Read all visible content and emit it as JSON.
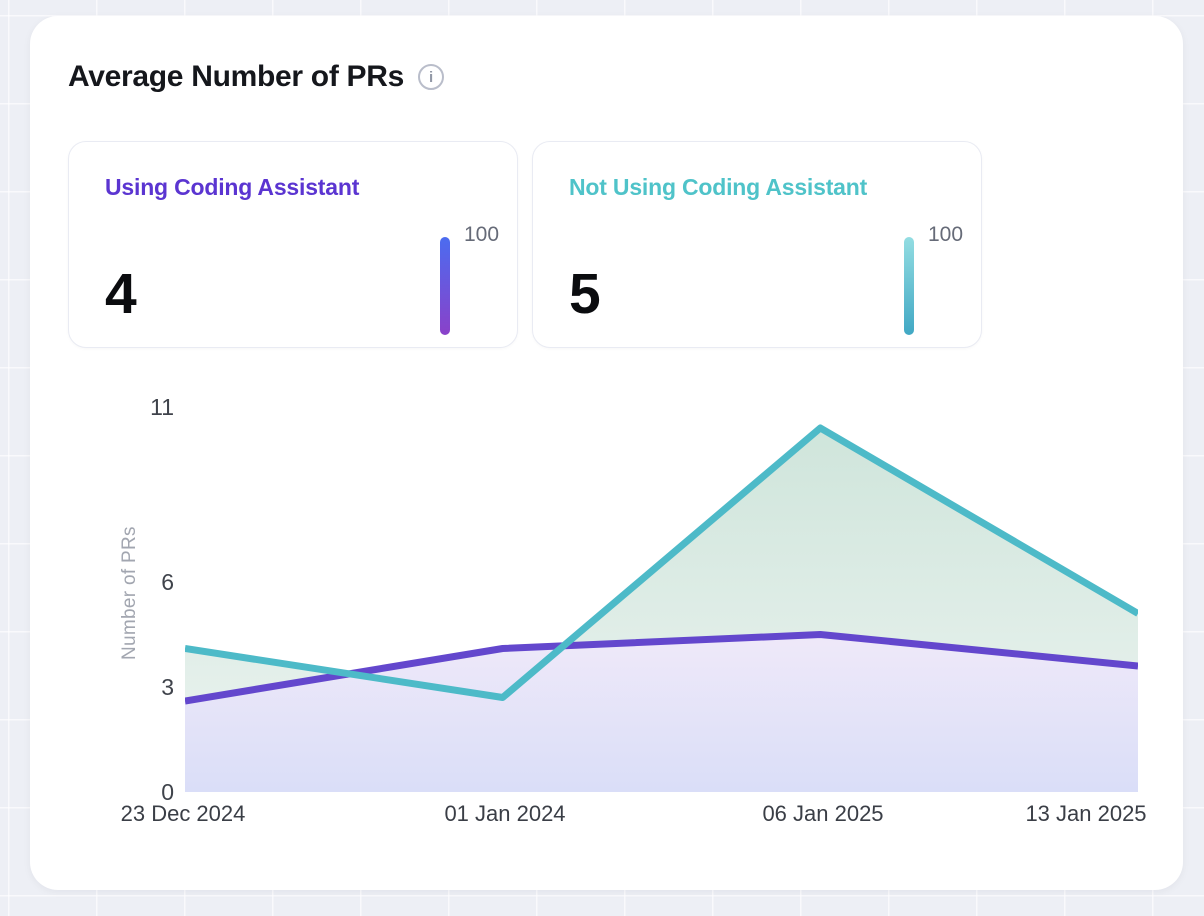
{
  "header": {
    "title": "Average Number of PRs",
    "info_glyph": "i"
  },
  "stat_cards": [
    {
      "label": "Using Coding Assistant",
      "value": "4",
      "scale_label": "100",
      "accent": "#5b35d1",
      "bar_from": "#4b6cf0",
      "bar_to": "#8a41c9"
    },
    {
      "label": "Not Using Coding Assistant",
      "value": "5",
      "scale_label": "100",
      "accent": "#4fc3c9",
      "bar_from": "#93dde2",
      "bar_to": "#41a8c4"
    }
  ],
  "chart_data": {
    "type": "area",
    "title": "Average Number of PRs",
    "x": [
      "23 Dec 2024",
      "01 Jan 2024",
      "06 Jan 2025",
      "13 Jan 2025"
    ],
    "series": [
      {
        "name": "Using Coding Assistant",
        "color": "#6347cd",
        "area_from": "#efe9f9",
        "area_to": "#dadef8",
        "values": [
          2.6,
          4.1,
          4.5,
          3.6
        ]
      },
      {
        "name": "Not Using Coding Assistant",
        "color": "#4dbac8",
        "area_from": "#cfe5db",
        "area_to": "#edf4f1",
        "values": [
          4.1,
          2.7,
          10.4,
          5.1
        ]
      }
    ],
    "ylabel": "Number of PRs",
    "yticks": [
      0,
      3,
      6,
      11
    ],
    "ylim": [
      0,
      11.5
    ],
    "grid": false,
    "legend": "none"
  }
}
